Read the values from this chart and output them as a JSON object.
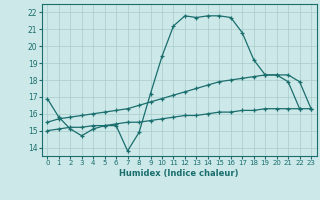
{
  "title": "",
  "xlabel": "Humidex (Indice chaleur)",
  "ylabel": "",
  "background_color": "#cde8e8",
  "grid_color": "#aacccc",
  "line_color": "#1a6e6e",
  "x": [
    0,
    1,
    2,
    3,
    4,
    5,
    6,
    7,
    8,
    9,
    10,
    11,
    12,
    13,
    14,
    15,
    16,
    17,
    18,
    19,
    20,
    21,
    22,
    23
  ],
  "line1": [
    16.9,
    15.8,
    15.1,
    14.7,
    15.1,
    15.3,
    15.3,
    13.8,
    14.9,
    17.2,
    19.4,
    21.2,
    21.8,
    21.7,
    21.8,
    21.8,
    21.7,
    20.8,
    19.2,
    18.3,
    18.3,
    17.9,
    16.3,
    null
  ],
  "line2": [
    15.5,
    15.7,
    15.8,
    15.9,
    16.0,
    16.1,
    16.2,
    16.3,
    16.5,
    16.7,
    16.9,
    17.1,
    17.3,
    17.5,
    17.7,
    17.9,
    18.0,
    18.1,
    18.2,
    18.3,
    18.3,
    18.3,
    17.9,
    16.3
  ],
  "line3": [
    15.0,
    15.1,
    15.2,
    15.2,
    15.3,
    15.3,
    15.4,
    15.5,
    15.5,
    15.6,
    15.7,
    15.8,
    15.9,
    15.9,
    16.0,
    16.1,
    16.1,
    16.2,
    16.2,
    16.3,
    16.3,
    16.3,
    16.3,
    16.3
  ],
  "xlim": [
    -0.5,
    23.5
  ],
  "ylim": [
    13.5,
    22.5
  ],
  "yticks": [
    14,
    15,
    16,
    17,
    18,
    19,
    20,
    21,
    22
  ],
  "xticks": [
    0,
    1,
    2,
    3,
    4,
    5,
    6,
    7,
    8,
    9,
    10,
    11,
    12,
    13,
    14,
    15,
    16,
    17,
    18,
    19,
    20,
    21,
    22,
    23
  ]
}
